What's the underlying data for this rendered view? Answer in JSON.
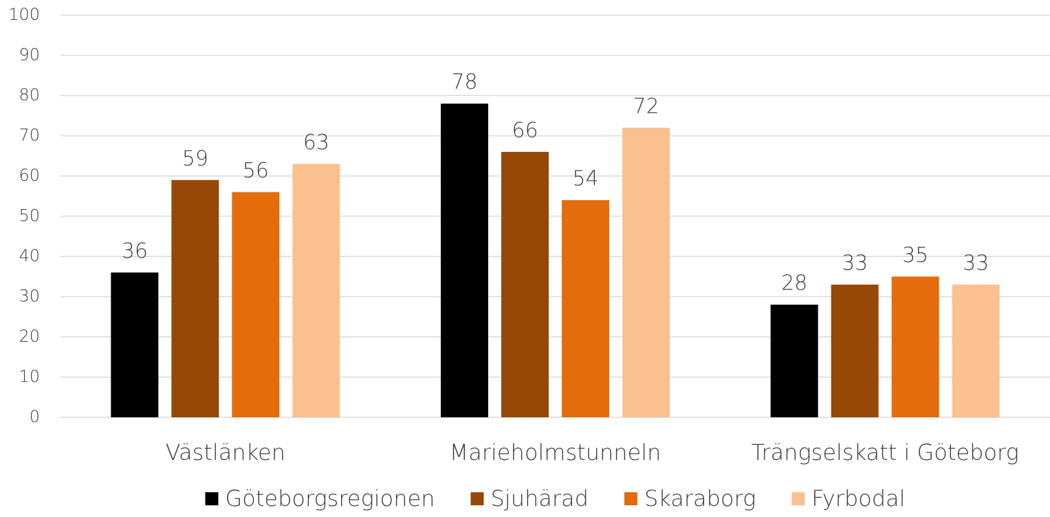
{
  "chart_data": {
    "type": "bar",
    "categories": [
      "Västlänken",
      "Marieholmstunneln",
      "Trängselskatt i Göteborg"
    ],
    "series": [
      {
        "name": "Göteborgsregionen",
        "color": "#000000",
        "values": [
          36,
          78,
          28
        ]
      },
      {
        "name": "Sjuhärad",
        "color": "#974706",
        "values": [
          59,
          66,
          33
        ]
      },
      {
        "name": "Skaraborg",
        "color": "#e46c0a",
        "values": [
          56,
          54,
          35
        ]
      },
      {
        "name": "Fyrbodal",
        "color": "#fac090",
        "values": [
          63,
          72,
          33
        ]
      }
    ],
    "ylim": [
      0,
      100
    ],
    "yticks": [
      0,
      10,
      20,
      30,
      40,
      50,
      60,
      70,
      80,
      90,
      100
    ],
    "grid": true,
    "legend": "bottom"
  }
}
